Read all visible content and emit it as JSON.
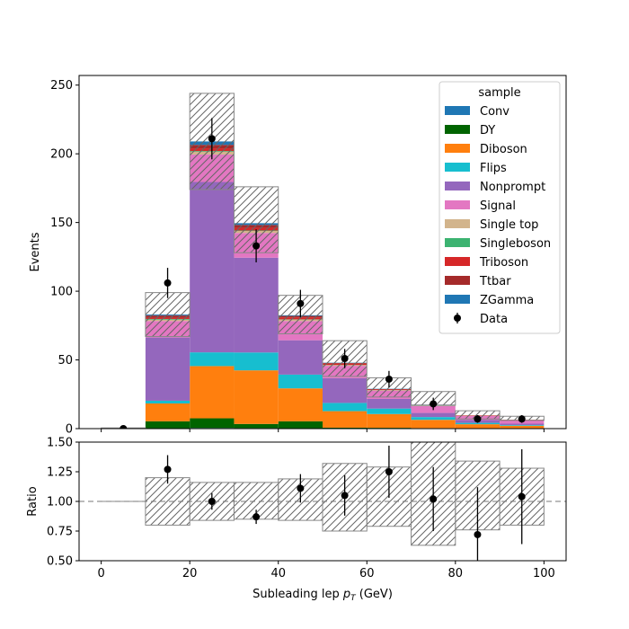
{
  "chart_data": [
    {
      "type": "bar",
      "subtype": "stacked-histogram",
      "bin_edges": [
        0,
        10,
        20,
        30,
        40,
        50,
        60,
        70,
        80,
        90,
        100
      ],
      "bin_centers": [
        5,
        15,
        25,
        35,
        45,
        55,
        65,
        75,
        85,
        95
      ],
      "series": [
        {
          "name": "Conv",
          "color": "#1f77b4",
          "values": [
            0,
            0.3,
            0.5,
            0.4,
            0.3,
            0.2,
            0.1,
            0.1,
            0,
            0
          ]
        },
        {
          "name": "DY",
          "color": "#006400",
          "values": [
            0,
            5,
            7,
            3,
            5,
            0.5,
            0.5,
            0.3,
            0.2,
            0.1
          ]
        },
        {
          "name": "Diboson",
          "color": "#ff7f0e",
          "values": [
            0,
            13,
            38,
            39,
            24,
            12,
            10,
            6,
            3,
            2
          ]
        },
        {
          "name": "Flips",
          "color": "#17becf",
          "values": [
            0,
            2,
            10,
            13,
            10,
            6,
            4,
            2,
            1,
            0.5
          ]
        },
        {
          "name": "Nonprompt",
          "color": "#9467bd",
          "values": [
            0,
            46,
            124,
            69,
            25,
            18,
            7,
            3,
            2,
            1
          ]
        },
        {
          "name": "Signal",
          "color": "#e377c2",
          "values": [
            0,
            12,
            20,
            18,
            14,
            9,
            6,
            5,
            3,
            2.5
          ]
        },
        {
          "name": "Single top",
          "color": "#d2b48c",
          "values": [
            0,
            1,
            2,
            1.5,
            1,
            0.5,
            0.3,
            0.2,
            0.1,
            0.1
          ]
        },
        {
          "name": "Singleboson",
          "color": "#3cb371",
          "values": [
            0,
            0.5,
            0.5,
            0.3,
            0.2,
            0.1,
            0.1,
            0.1,
            0,
            0
          ]
        },
        {
          "name": "Triboson",
          "color": "#d62728",
          "values": [
            0,
            1,
            2,
            2,
            1.5,
            1,
            0.5,
            0.5,
            0.3,
            0.2
          ]
        },
        {
          "name": "Ttbar",
          "color": "#a52a2a",
          "values": [
            0,
            1.5,
            2.5,
            2,
            1,
            0.5,
            0.3,
            0.2,
            0.1,
            0.1
          ]
        },
        {
          "name": "ZGamma",
          "color": "#1f77b4",
          "values": [
            0,
            0.7,
            2.5,
            1.3,
            0.5,
            0.2,
            0.2,
            0.1,
            0,
            0
          ]
        }
      ],
      "uncertainty": {
        "pattern": "hatched",
        "upper": [
          0.5,
          99,
          244,
          176,
          97,
          64,
          37,
          27,
          13,
          9
        ],
        "lower": [
          0,
          67,
          174,
          128,
          69,
          38,
          23,
          17,
          7,
          6
        ]
      },
      "data": {
        "name": "Data",
        "x": [
          5,
          15,
          25,
          35,
          45,
          55,
          65,
          75,
          85,
          95
        ],
        "y": [
          0,
          106,
          211,
          133,
          91,
          51,
          36,
          18,
          7,
          7
        ],
        "yerr": [
          0.5,
          11,
          15,
          12,
          10,
          7,
          6,
          4.5,
          2.8,
          2.8
        ]
      },
      "xlabel": "",
      "ylabel": "Events",
      "xlim": [
        -5,
        105
      ],
      "ylim": [
        0,
        257
      ],
      "yticks": [
        0,
        50,
        100,
        150,
        200,
        250
      ],
      "legend": {
        "title": "sample",
        "position": "top-right"
      }
    },
    {
      "type": "scatter",
      "subtype": "ratio",
      "x": [
        5,
        15,
        25,
        35,
        45,
        55,
        65,
        75,
        85,
        95
      ],
      "y": [
        1.0,
        1.27,
        1.0,
        0.87,
        1.11,
        1.05,
        1.25,
        1.02,
        0.72,
        1.04
      ],
      "yerr": [
        0,
        0.12,
        0.07,
        0.06,
        0.12,
        0.17,
        0.22,
        0.27,
        0.4,
        0.4
      ],
      "band": {
        "pattern": "hatched",
        "upper": [
          1.0,
          1.2,
          1.16,
          1.16,
          1.19,
          1.32,
          1.29,
          1.58,
          1.34,
          1.28
        ],
        "lower": [
          1.0,
          0.8,
          0.84,
          0.85,
          0.84,
          0.75,
          0.79,
          0.63,
          0.76,
          0.8
        ]
      },
      "reference_line": 1.0,
      "xlabel": "Subleading lep $p_T$ (GeV)",
      "ylabel": "Ratio",
      "xlim": [
        -5,
        105
      ],
      "ylim": [
        0.5,
        1.5
      ],
      "xticks": [
        0,
        20,
        40,
        60,
        80,
        100
      ],
      "yticks": [
        "0.50",
        "0.75",
        "1.00",
        "1.25",
        "1.50"
      ]
    }
  ]
}
